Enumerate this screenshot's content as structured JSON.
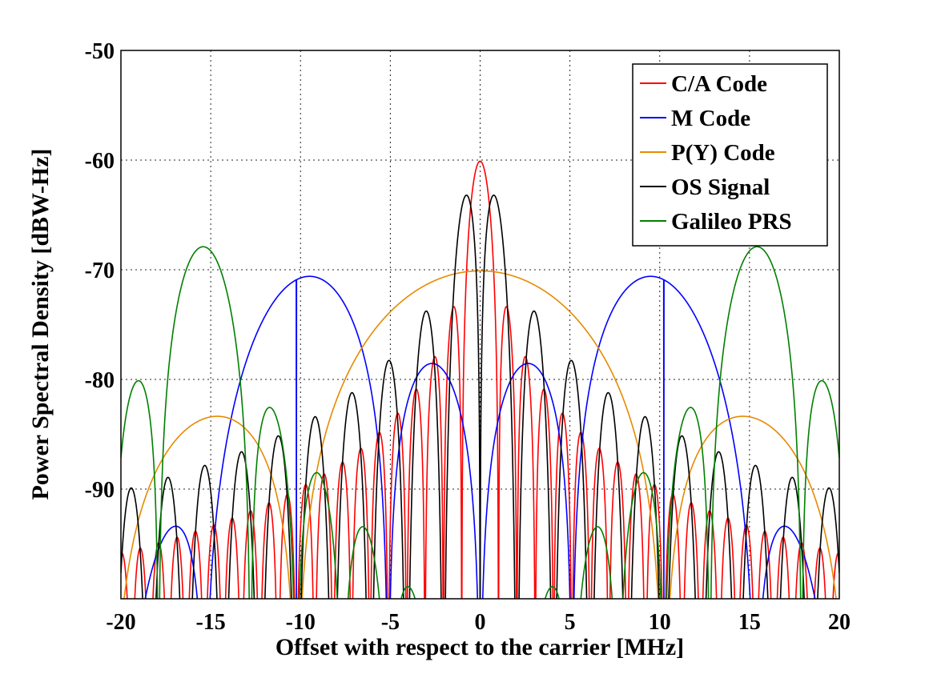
{
  "chart_data": {
    "type": "line",
    "title": "",
    "xlabel": "Offset with respect to the carrier [MHz]",
    "ylabel": "Power Spectral Density [dBW-Hz]",
    "xlim": [
      -20,
      20
    ],
    "ylim": [
      -100,
      -50
    ],
    "xticks": [
      -20,
      -15,
      -10,
      -5,
      0,
      5,
      10,
      15,
      20
    ],
    "yticks": [
      -50,
      -60,
      -70,
      -80,
      -90
    ],
    "grid": true,
    "legend_position": "top-right",
    "series": [
      {
        "name": "C/A Code",
        "color": "#ff0000",
        "model": "bpsk",
        "fc_mhz": 1.023,
        "peak_dbw_hz": -60.1
      },
      {
        "name": "M Code",
        "color": "#0000ff",
        "model": "boc_sin",
        "fs_mhz": 10.23,
        "fc_mhz": 5.115,
        "peak_dbw_hz": -70.6
      },
      {
        "name": "P(Y) Code",
        "color": "#e68a00",
        "model": "bpsk",
        "fc_mhz": 10.23,
        "peak_dbw_hz": -70.1
      },
      {
        "name": "OS Signal",
        "color": "#000000",
        "model": "boc_sin",
        "fs_mhz": 1.023,
        "fc_mhz": 1.023,
        "peak_dbw_hz": -63.2
      },
      {
        "name": "Galileo PRS",
        "color": "#008000",
        "model": "boc_cos",
        "fs_mhz": 15.345,
        "fc_mhz": 2.5575,
        "peak_dbw_hz": -67.9
      }
    ]
  }
}
